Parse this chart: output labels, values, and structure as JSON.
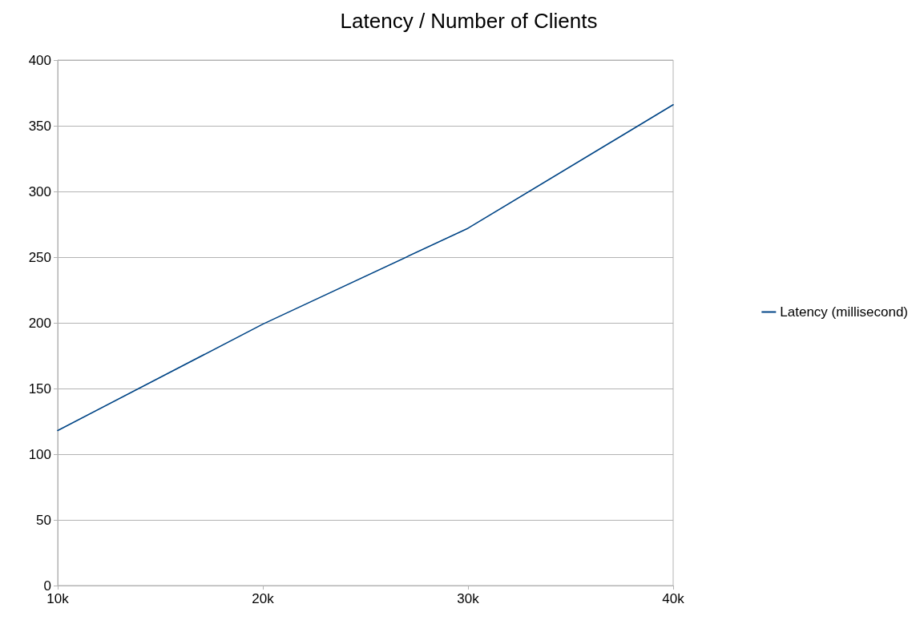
{
  "chart_data": {
    "type": "line",
    "title": "Latency / Number of Clients",
    "categories": [
      "10k",
      "20k",
      "30k",
      "40k"
    ],
    "series": [
      {
        "name": "Latency (millisecond)",
        "color": "#004586",
        "values": [
          118,
          199,
          272,
          366
        ]
      }
    ],
    "ylim": [
      0,
      400
    ],
    "yticks": [
      0,
      50,
      100,
      150,
      200,
      250,
      300,
      350,
      400
    ],
    "grid": "y",
    "legend": "right",
    "marker": "none",
    "line_style": "solid"
  }
}
